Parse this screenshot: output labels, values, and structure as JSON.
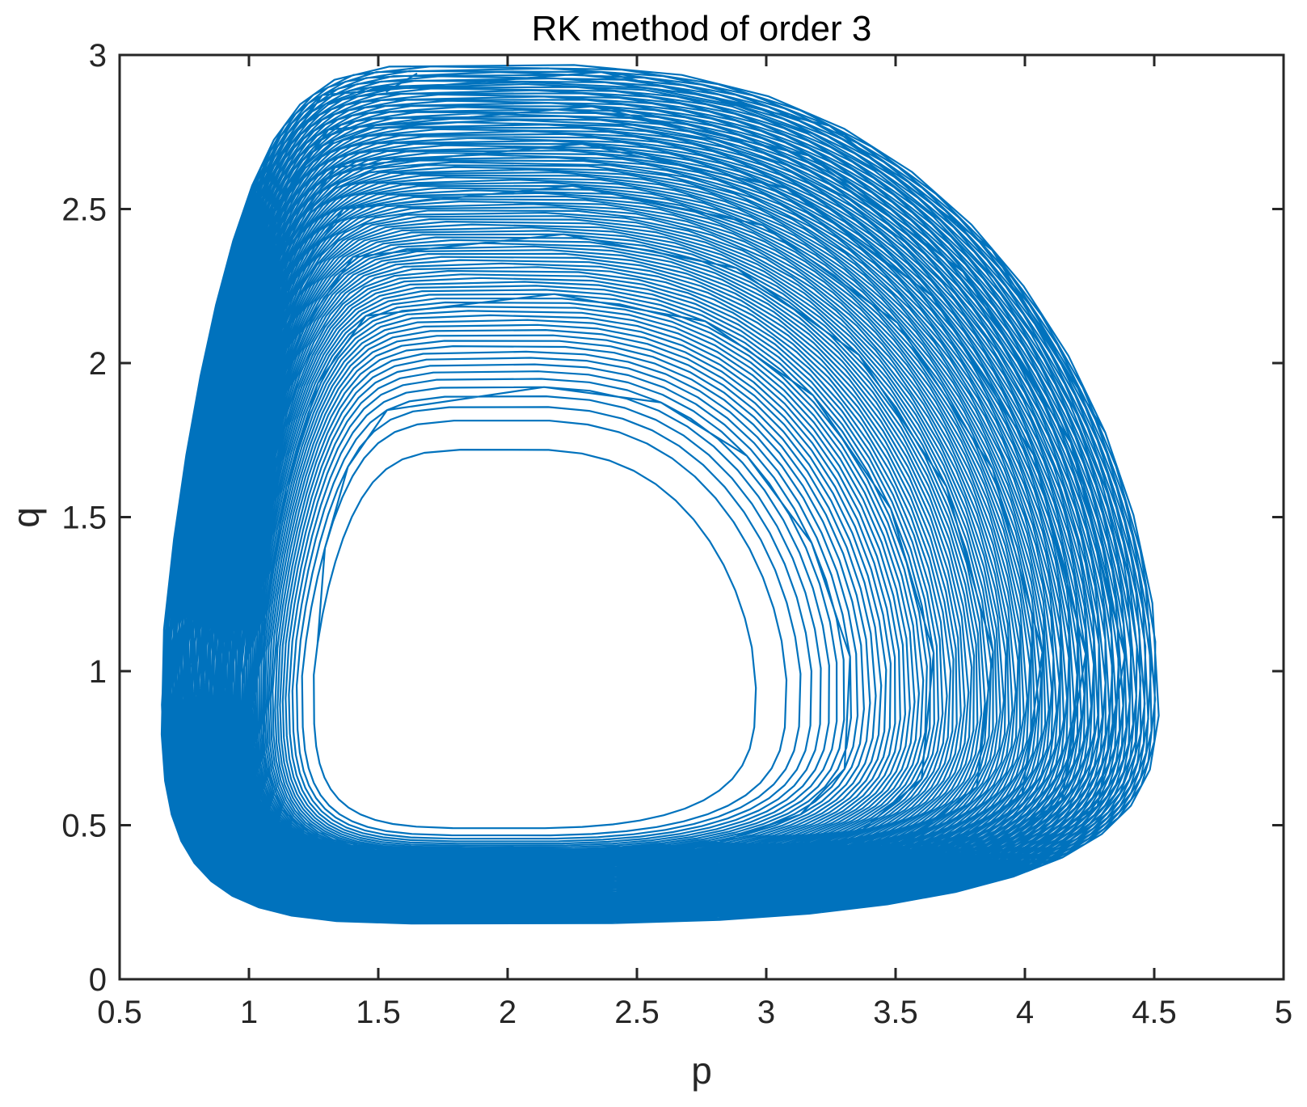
{
  "chart_data": {
    "type": "line",
    "title": "RK method of order 3",
    "xlabel": "p",
    "ylabel": "q",
    "xlim": [
      0.5,
      5
    ],
    "ylim": [
      0,
      3
    ],
    "xticks": [
      0.5,
      1,
      1.5,
      2,
      2.5,
      3,
      3.5,
      4,
      4.5,
      5
    ],
    "yticks": [
      0,
      0.5,
      1,
      1.5,
      2,
      2.5,
      3
    ],
    "xtick_labels": [
      "0.5",
      "1",
      "1.5",
      "2",
      "2.5",
      "3",
      "3.5",
      "4",
      "4.5",
      "5"
    ],
    "ytick_labels": [
      "0",
      "0.5",
      "1",
      "1.5",
      "2",
      "2.5",
      "3"
    ],
    "grid": false,
    "box": true,
    "series": [
      {
        "color": "#0072BD",
        "description": "phase-plane trajectory spiralling inward from the outer cycle to the inner cycle",
        "outer_cycle": {
          "p_min": 0.66,
          "p_max": 4.52,
          "q_min": 0.18,
          "q_max": 2.97,
          "p_at_q_max": 2.02,
          "q_at_p_max": 1.02
        },
        "inner_cycle": {
          "p_min": 1.25,
          "p_max": 2.96,
          "q_min": 0.49,
          "q_max": 1.72,
          "p_at_q_max": 2.05,
          "q_at_p_max": 0.98
        },
        "start_point": [
          1.65,
          2.94
        ],
        "revolutions": 110
      }
    ]
  },
  "colors": {
    "line": "#0072BD",
    "axes": "#262626",
    "background": "#FFFFFF"
  }
}
